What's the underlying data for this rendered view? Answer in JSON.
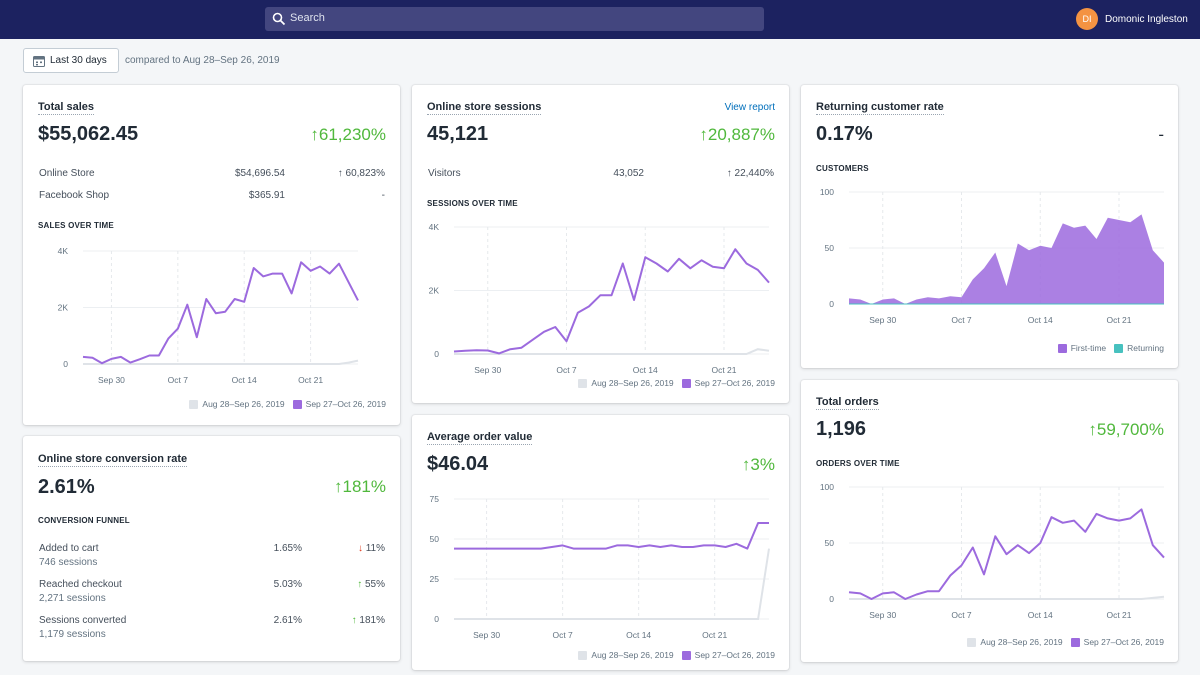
{
  "topbar": {
    "search_placeholder": "Search",
    "user": {
      "initials": "DI",
      "name": "Domonic Ingleston"
    }
  },
  "toolbar": {
    "date_range": "Last 30 days",
    "compare_text": "compared to Aug 28–Sep 26, 2019"
  },
  "colors": {
    "current": "#9c6ade",
    "previous": "#dfe3e8",
    "positive": "#50b83c",
    "negative": "#de3618",
    "returning": "#47c1bf"
  },
  "legend": {
    "previous": "Aug 28–Sep 26, 2019",
    "current": "Sep 27–Oct 26, 2019"
  },
  "total_sales": {
    "title": "Total sales",
    "value": "$55,062.45",
    "change": "↑61,230%",
    "rows": [
      {
        "label": "Online Store",
        "value": "$54,696.54",
        "change": "↑ 60,823%"
      },
      {
        "label": "Facebook Shop",
        "value": "$365.91",
        "change": "-"
      }
    ],
    "chart_title": "SALES OVER TIME"
  },
  "sessions": {
    "title": "Online store sessions",
    "link": "View report",
    "value": "45,121",
    "change": "↑20,887%",
    "rows": [
      {
        "label": "Visitors",
        "value": "43,052",
        "change": "↑ 22,440%"
      }
    ],
    "chart_title": "SESSIONS OVER TIME"
  },
  "returning": {
    "title": "Returning customer rate",
    "value": "0.17%",
    "change": "-",
    "chart_title": "CUSTOMERS",
    "legend_first": "First-time",
    "legend_returning": "Returning"
  },
  "conversion": {
    "title": "Online store conversion rate",
    "value": "2.61%",
    "change": "↑181%",
    "chart_title": "CONVERSION FUNNEL",
    "rows": [
      {
        "label": "Added to cart",
        "sub": "746 sessions",
        "value": "1.65%",
        "arrow": "↓",
        "change": "11%"
      },
      {
        "label": "Reached checkout",
        "sub": "2,271 sessions",
        "value": "5.03%",
        "arrow": "↑",
        "change": "55%"
      },
      {
        "label": "Sessions converted",
        "sub": "1,179 sessions",
        "value": "2.61%",
        "arrow": "↑",
        "change": "181%"
      }
    ]
  },
  "aov": {
    "title": "Average order value",
    "value": "$46.04",
    "change": "↑3%"
  },
  "orders": {
    "title": "Total orders",
    "value": "1,196",
    "change": "↑59,700%",
    "chart_title": "ORDERS OVER TIME"
  },
  "chart_data": [
    {
      "id": "sales",
      "type": "line",
      "title": "SALES OVER TIME",
      "x_ticks": [
        "Sep 30",
        "Oct 7",
        "Oct 14",
        "Oct 21"
      ],
      "x_tick_index": [
        3,
        10,
        17,
        24
      ],
      "y_ticks": [
        "0",
        "2K",
        "4K"
      ],
      "ylim": [
        0,
        4000
      ],
      "series": [
        {
          "name": "Sep 27–Oct 26, 2019",
          "values": [
            250,
            220,
            30,
            180,
            250,
            50,
            170,
            300,
            300,
            900,
            1250,
            2100,
            950,
            2300,
            1800,
            1850,
            2300,
            2200,
            3400,
            3100,
            3200,
            3200,
            2500,
            3600,
            3300,
            3450,
            3200,
            3550,
            2900,
            2250
          ]
        },
        {
          "name": "Aug 28–Sep 26, 2019",
          "values": [
            0,
            0,
            0,
            0,
            0,
            0,
            0,
            0,
            0,
            0,
            0,
            0,
            0,
            0,
            0,
            0,
            0,
            0,
            0,
            0,
            0,
            0,
            0,
            0,
            0,
            0,
            0,
            0,
            50,
            120
          ]
        }
      ]
    },
    {
      "id": "sessions",
      "type": "line",
      "title": "SESSIONS OVER TIME",
      "x_ticks": [
        "Sep 30",
        "Oct 7",
        "Oct 14",
        "Oct 21"
      ],
      "x_tick_index": [
        3,
        10,
        17,
        24
      ],
      "y_ticks": [
        "0",
        "2K",
        "4K"
      ],
      "ylim": [
        0,
        4000
      ],
      "series": [
        {
          "name": "Sep 27–Oct 26, 2019",
          "values": [
            80,
            100,
            120,
            110,
            20,
            150,
            200,
            450,
            700,
            850,
            400,
            1300,
            1500,
            1850,
            1850,
            2850,
            1700,
            3050,
            2850,
            2600,
            3000,
            2700,
            2950,
            2750,
            2700,
            3300,
            2850,
            2650,
            2250
          ]
        },
        {
          "name": "Aug 28–Sep 26, 2019",
          "values": [
            0,
            0,
            0,
            0,
            0,
            0,
            0,
            0,
            0,
            0,
            0,
            0,
            0,
            0,
            0,
            0,
            0,
            0,
            0,
            0,
            0,
            0,
            0,
            0,
            0,
            0,
            0,
            150,
            100
          ]
        }
      ]
    },
    {
      "id": "customers",
      "type": "area",
      "title": "CUSTOMERS",
      "x_ticks": [
        "Sep 30",
        "Oct 7",
        "Oct 14",
        "Oct 21"
      ],
      "x_tick_index": [
        3,
        10,
        17,
        24
      ],
      "y_ticks": [
        "0",
        "50",
        "100"
      ],
      "ylim": [
        0,
        100
      ],
      "series": [
        {
          "name": "First-time",
          "values": [
            5,
            4,
            0,
            4,
            5,
            0,
            4,
            6,
            5,
            7,
            6,
            22,
            32,
            46,
            16,
            54,
            48,
            52,
            50,
            72,
            68,
            70,
            58,
            77,
            75,
            73,
            80,
            48,
            37
          ]
        },
        {
          "name": "Returning",
          "values": [
            0,
            0,
            0,
            0,
            0,
            0,
            0,
            0,
            0,
            0,
            0,
            0,
            0,
            0,
            0,
            0,
            0,
            0,
            0,
            0,
            0,
            0,
            0,
            0,
            0,
            0,
            0,
            0,
            0
          ]
        }
      ]
    },
    {
      "id": "aov",
      "type": "line",
      "title": "Average order value",
      "x_ticks": [
        "Sep 30",
        "Oct 7",
        "Oct 14",
        "Oct 21"
      ],
      "x_tick_index": [
        3,
        10,
        17,
        24
      ],
      "y_ticks": [
        "0",
        "25",
        "50",
        "75"
      ],
      "ylim": [
        0,
        75
      ],
      "series": [
        {
          "name": "Sep 27–Oct 26, 2019",
          "values": [
            44,
            44,
            44,
            44,
            44,
            44,
            44,
            44,
            44,
            45,
            46,
            44,
            44,
            44,
            44,
            46,
            46,
            45,
            46,
            45,
            46,
            45,
            45,
            46,
            46,
            45,
            47,
            44,
            60,
            60
          ]
        },
        {
          "name": "Aug 28–Sep 26, 2019",
          "values": [
            0,
            0,
            0,
            0,
            0,
            0,
            0,
            0,
            0,
            0,
            0,
            0,
            0,
            0,
            0,
            0,
            0,
            0,
            0,
            0,
            0,
            0,
            0,
            0,
            0,
            0,
            0,
            0,
            0,
            44
          ]
        }
      ]
    },
    {
      "id": "orders",
      "type": "line",
      "title": "ORDERS OVER TIME",
      "x_ticks": [
        "Sep 30",
        "Oct 7",
        "Oct 14",
        "Oct 21"
      ],
      "x_tick_index": [
        3,
        10,
        17,
        24
      ],
      "y_ticks": [
        "0",
        "50",
        "100"
      ],
      "ylim": [
        0,
        100
      ],
      "series": [
        {
          "name": "Sep 27–Oct 26, 2019",
          "values": [
            6,
            5,
            0,
            5,
            6,
            0,
            4,
            7,
            7,
            21,
            30,
            46,
            22,
            56,
            40,
            48,
            41,
            50,
            73,
            68,
            70,
            60,
            76,
            72,
            70,
            72,
            80,
            48,
            37
          ]
        },
        {
          "name": "Aug 28–Sep 26, 2019",
          "values": [
            0,
            0,
            0,
            0,
            0,
            0,
            0,
            0,
            0,
            0,
            0,
            0,
            0,
            0,
            0,
            0,
            0,
            0,
            0,
            0,
            0,
            0,
            0,
            0,
            0,
            0,
            0,
            1,
            2
          ]
        }
      ]
    }
  ]
}
